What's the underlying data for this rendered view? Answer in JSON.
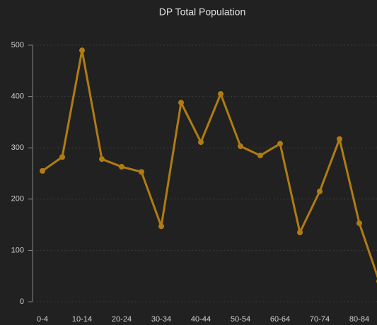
{
  "chart_data": {
    "type": "line",
    "title": "DP Total Population",
    "categories": [
      "0-4",
      null,
      "10-14",
      null,
      "20-24",
      null,
      "30-34",
      null,
      "40-44",
      null,
      "50-54",
      null,
      "60-64",
      null,
      "70-74",
      null,
      "80-84",
      null
    ],
    "series": [
      {
        "name": "DP Total Population",
        "color": "#b07c12",
        "values": [
          255,
          282,
          490,
          278,
          263,
          253,
          147,
          388,
          311,
          405,
          303,
          285,
          308,
          135,
          215,
          317,
          153,
          40
        ]
      }
    ],
    "ylim": [
      0,
      500
    ],
    "yticks": [
      0,
      100,
      200,
      300,
      400,
      500
    ],
    "grid": true
  }
}
